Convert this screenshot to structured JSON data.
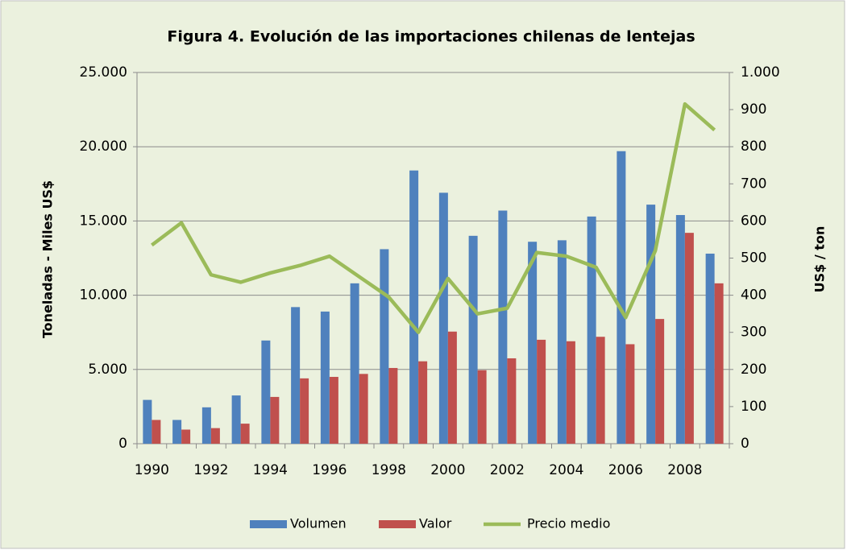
{
  "chart_data": {
    "type": "bar",
    "title": "Figura 4. Evolución de las importaciones chilenas de lentejas",
    "ylabel": "Toneladas - Miles US$",
    "y2label": "US$ / ton",
    "categories": [
      "1990",
      null,
      "1992",
      null,
      "1994",
      null,
      "1996",
      null,
      "1998",
      null,
      "2000",
      null,
      "2002",
      null,
      "2004",
      null,
      "2006",
      null,
      "2008",
      null
    ],
    "series": [
      {
        "name": "Volumen",
        "type": "bar",
        "color": "#4f81bd",
        "values": [
          2950,
          1600,
          2450,
          3250,
          6950,
          9200,
          8900,
          10800,
          13100,
          18400,
          16900,
          14000,
          15700,
          13600,
          13700,
          15300,
          19700,
          16100,
          15400,
          12800
        ]
      },
      {
        "name": "Valor",
        "type": "bar",
        "color": "#c0504d",
        "values": [
          1600,
          950,
          1050,
          1350,
          3150,
          4400,
          4500,
          4700,
          5100,
          5550,
          7550,
          4950,
          5750,
          7000,
          6900,
          7200,
          6700,
          8400,
          14200,
          10800
        ]
      },
      {
        "name": "Precio medio",
        "type": "line",
        "axis": "y2",
        "color": "#9bbb59",
        "values": [
          535,
          595,
          455,
          435,
          460,
          480,
          505,
          450,
          395,
          300,
          445,
          350,
          365,
          515,
          505,
          475,
          340,
          520,
          915,
          845
        ]
      }
    ],
    "ylim": [
      0,
      25000
    ],
    "yticks": [
      0,
      {
        "value": 5000,
        "label": "5.000"
      },
      {
        "value": 10000,
        "label": "10.000"
      },
      {
        "value": 15000,
        "label": "15.000"
      },
      {
        "value": 20000,
        "label": "20.000"
      },
      {
        "value": 25000,
        "label": "25.000"
      }
    ],
    "y2lim": [
      0,
      1000
    ],
    "y2ticks": [
      0,
      100,
      200,
      300,
      400,
      500,
      600,
      700,
      800,
      900,
      {
        "value": 1000,
        "label": "1.000"
      }
    ],
    "grid": true,
    "legend": "bottom"
  }
}
